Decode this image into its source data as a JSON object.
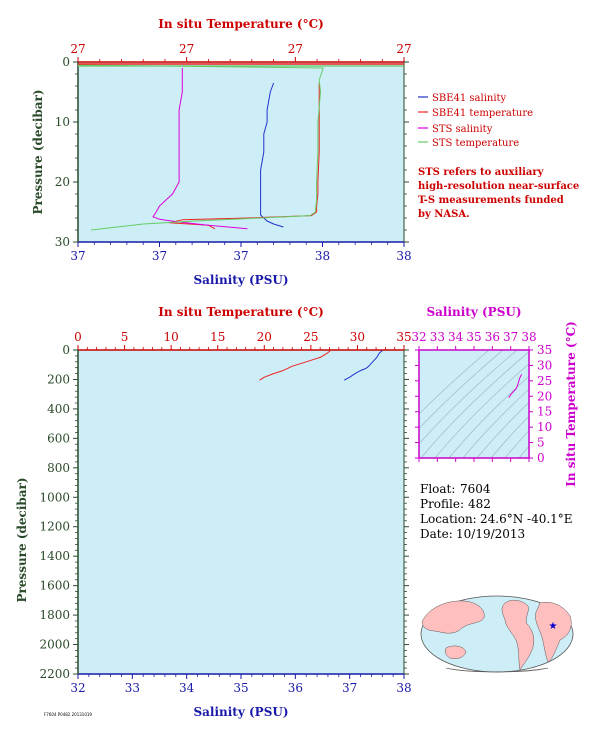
{
  "colors": {
    "plot_bg": "#cdeef7",
    "salinity_axis": "#1a1aaa",
    "temperature_axis": "#cc0000",
    "pressure_axis": "#2a4a2a",
    "inset_axis": "#cc00cc",
    "sbe_salinity": "#2233cc",
    "sbe_temperature": "#ee2222",
    "sts_salinity": "#dd00dd",
    "sts_temperature": "#66cc66"
  },
  "info": {
    "float_label": "Float:",
    "float_value": "7604",
    "profile_label": "Profile:",
    "profile_value": "482",
    "location_label": "Location:",
    "location_value": "24.6°N  -40.1°E",
    "date_label": "Date:",
    "date_value": "10/19/2013"
  },
  "legend": [
    {
      "label": "SBE41 salinity",
      "color": "#2233cc"
    },
    {
      "label": "SBE41 temperature",
      "color": "#ee2222"
    },
    {
      "label": "STS salinity",
      "color": "#dd00dd"
    },
    {
      "label": "STS temperature",
      "color": "#66cc66"
    }
  ],
  "note": [
    "STS refers to auxiliary",
    "high-resolution near-surface",
    "T-S measurements funded",
    "by NASA."
  ],
  "footer_tiny": "F7604 P0482 20131019",
  "chart_data": [
    {
      "type": "line",
      "panel": "near-surface",
      "title_top": "In situ Temperature (°C)",
      "xlabel": "Salinity (PSU)",
      "ylabel": "Pressure (decibar)",
      "salinity_ticks": [
        "37",
        "37",
        "37",
        "38",
        "38"
      ],
      "temperature_ticks": [
        "27",
        "27",
        "27",
        "27"
      ],
      "pressure_ticks": [
        "0",
        "10",
        "20",
        "30"
      ],
      "ylim": [
        0,
        30
      ],
      "xlim_salinity": [
        37.0,
        38.0
      ],
      "xlim_temperature": [
        26.9,
        27.15
      ],
      "series": [
        {
          "name": "SBE41 salinity",
          "color": "#2233cc",
          "axis": "salinity",
          "x": [
            37.6,
            37.59,
            37.58,
            37.58,
            37.57,
            37.57,
            37.56,
            37.56,
            37.56,
            37.56,
            37.56,
            37.57,
            37.58,
            37.6,
            37.63
          ],
          "y": [
            3.5,
            5.0,
            8.0,
            10.0,
            12.0,
            15.0,
            18.0,
            20.0,
            22.0,
            24.0,
            25.5,
            26.0,
            26.5,
            27.0,
            27.5
          ]
        },
        {
          "name": "SBE41 temperature",
          "color": "#ee2222",
          "axis": "temperature",
          "x": [
            27.085,
            27.085,
            27.085,
            27.085,
            27.085,
            27.084,
            27.084,
            27.083,
            27.083,
            27.079,
            27.03,
            26.98,
            26.97,
            27.0,
            27.005
          ],
          "y": [
            3.5,
            5.0,
            8.0,
            10.0,
            15.0,
            20.0,
            22.0,
            24.0,
            25.0,
            25.6,
            26.0,
            26.3,
            26.8,
            27.2,
            27.8
          ]
        },
        {
          "name": "STS salinity",
          "color": "#dd00dd",
          "axis": "salinity",
          "x": [
            37.32,
            37.32,
            37.32,
            37.31,
            37.31,
            37.31,
            37.31,
            37.31,
            37.31,
            37.3,
            37.29,
            37.27,
            37.25,
            37.24,
            37.23,
            37.25,
            37.3,
            37.4,
            37.52
          ],
          "y": [
            1.0,
            3.0,
            5.0,
            8.0,
            10.0,
            12.0,
            15.0,
            18.0,
            20.0,
            21.0,
            22.0,
            23.0,
            24.0,
            25.0,
            25.8,
            26.2,
            26.6,
            27.2,
            27.8
          ]
        },
        {
          "name": "STS temperature",
          "color": "#66cc66",
          "axis": "temperature",
          "x": [
            26.9,
            27.088,
            27.085,
            27.086,
            27.084,
            27.084,
            27.083,
            27.083,
            27.082,
            27.078,
            27.04,
            26.99,
            26.95,
            26.93,
            26.91
          ],
          "y": [
            0.5,
            1.0,
            3.0,
            5.0,
            10.0,
            15.0,
            20.0,
            23.0,
            25.0,
            25.6,
            26.0,
            26.5,
            27.0,
            27.5,
            28.0
          ]
        }
      ]
    },
    {
      "type": "line",
      "panel": "full-profile",
      "title_top": "In situ Temperature (°C)",
      "xlabel": "Salinity (PSU)",
      "ylabel": "Pressure (decibar)",
      "salinity_ticks": [
        "32",
        "33",
        "34",
        "35",
        "36",
        "37",
        "38"
      ],
      "temperature_ticks": [
        "0",
        "5",
        "10",
        "15",
        "20",
        "25",
        "30",
        "35"
      ],
      "pressure_ticks": [
        "0",
        "200",
        "400",
        "600",
        "800",
        "1000",
        "1200",
        "1400",
        "1600",
        "1800",
        "2000",
        "2200"
      ],
      "ylim": [
        0,
        2200
      ],
      "xlim_salinity": [
        32,
        38
      ],
      "xlim_temperature": [
        0,
        35
      ],
      "series": [
        {
          "name": "SBE41 temperature",
          "color": "#ee2222",
          "axis": "temperature",
          "x": [
            27.1,
            26.8,
            26.0,
            25.0,
            24.0,
            23.0,
            22.5,
            22.0,
            21.0,
            20.0,
            19.5
          ],
          "y": [
            4,
            20,
            50,
            70,
            90,
            110,
            125,
            140,
            160,
            185,
            205
          ]
        },
        {
          "name": "SBE41 salinity",
          "color": "#2233cc",
          "axis": "salinity",
          "x": [
            37.6,
            37.55,
            37.5,
            37.45,
            37.4,
            37.35,
            37.3,
            37.2,
            37.1,
            37.0,
            36.9
          ],
          "y": [
            4,
            20,
            50,
            70,
            90,
            110,
            125,
            140,
            160,
            185,
            205
          ]
        }
      ]
    },
    {
      "type": "scatter",
      "panel": "t-s-inset",
      "title_top": "Salinity (PSU)",
      "ylabel": "In situ Temperature (°C)",
      "salinity_ticks": [
        "32",
        "33",
        "34",
        "35",
        "36",
        "37",
        "38"
      ],
      "temperature_ticks": [
        "0",
        "5",
        "10",
        "15",
        "20",
        "25",
        "30",
        "35"
      ],
      "xlim_salinity": [
        32,
        38
      ],
      "ylim_temperature": [
        0,
        35
      ],
      "series": [
        {
          "name": "T-S",
          "color": "#dd00dd",
          "x": [
            37.6,
            37.5,
            37.4,
            37.3,
            37.15,
            37.0,
            36.9
          ],
          "y": [
            27.1,
            26.0,
            24.0,
            22.5,
            21.5,
            20.5,
            19.5
          ]
        }
      ]
    }
  ]
}
